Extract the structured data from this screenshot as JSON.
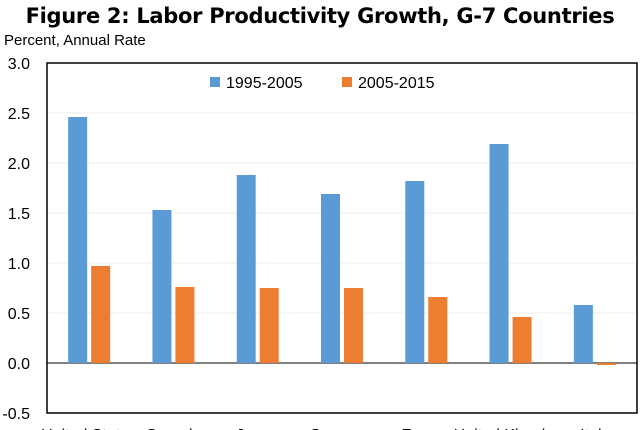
{
  "chart_data": {
    "type": "bar",
    "title": "Figure 2: Labor Productivity Growth, G-7 Countries",
    "ylabel": "Percent, Annual Rate",
    "xlabel": "",
    "ylim": [
      -0.5,
      3.0
    ],
    "yticks": [
      "3.0",
      "2.5",
      "2.0",
      "1.5",
      "1.0",
      "0.5",
      "0.0",
      "-0.5"
    ],
    "grid": true,
    "legend_position": "top-center",
    "categories": [
      "United States",
      "Canada",
      "Japan",
      "Germany",
      "France",
      "United Kingdom",
      "Italy"
    ],
    "series": [
      {
        "name": "1995-2005",
        "color": "#5b9bd5",
        "values": [
          2.46,
          1.53,
          1.88,
          1.69,
          1.82,
          2.19,
          0.58
        ]
      },
      {
        "name": "2005-2015",
        "color": "#ed7d31",
        "values": [
          0.97,
          0.76,
          0.75,
          0.75,
          0.66,
          0.46,
          -0.02
        ]
      }
    ]
  }
}
